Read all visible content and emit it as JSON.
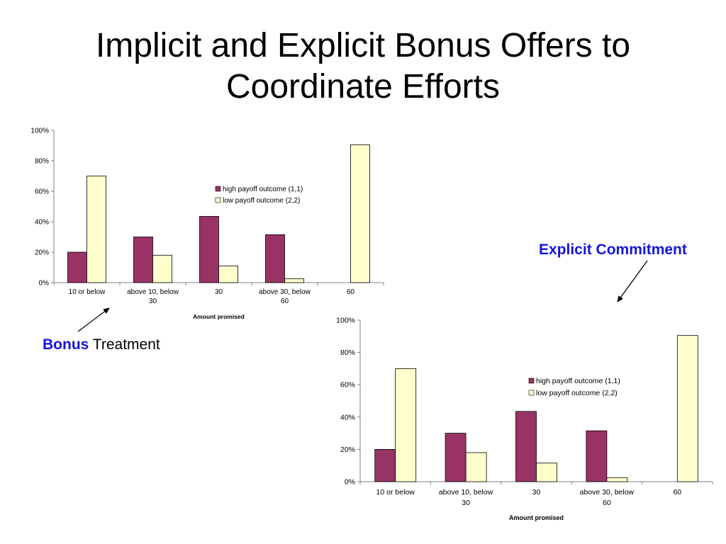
{
  "slide": {
    "title_line1": "Implicit and Explicit Bonus Offers to",
    "title_line2": "Coordinate Efforts"
  },
  "annotations": {
    "bonus_bold": "Bonus",
    "bonus_rest": "Treatment",
    "explicit": "Explicit Commitment"
  },
  "colors": {
    "high": "#993366",
    "low": "#ffffcc",
    "annotation": "#1515d8"
  },
  "chart_data": [
    {
      "type": "bar",
      "categories": [
        [
          "10 or below"
        ],
        [
          "above 10, below",
          "30"
        ],
        [
          "30"
        ],
        [
          "above 30, below",
          "60"
        ],
        [
          "60"
        ]
      ],
      "series": [
        {
          "name": "high payoff outcome (1,1)",
          "values": [
            0.2,
            0.3,
            0.435,
            0.315,
            0
          ]
        },
        {
          "name": "low payoff outcome (2,2)",
          "values": [
            0.7,
            0.18,
            0.11,
            0.025,
            0.905
          ]
        }
      ],
      "yticks": [
        "0%",
        "20%",
        "40%",
        "60%",
        "80%",
        "100%"
      ],
      "ylim": [
        0,
        1
      ],
      "xlabel": "Amount promised",
      "ylabel": "",
      "legend": "upper-center",
      "grid": false
    },
    {
      "type": "bar",
      "categories": [
        [
          "10 or below"
        ],
        [
          "above 10, below",
          "30"
        ],
        [
          "30"
        ],
        [
          "above 30, below",
          "60"
        ],
        [
          "60"
        ]
      ],
      "series": [
        {
          "name": "high payoff outcome (1,1)",
          "values": [
            0.2,
            0.3,
            0.435,
            0.315,
            0
          ]
        },
        {
          "name": "low payoff outcome (2,2)",
          "values": [
            0.7,
            0.18,
            0.115,
            0.025,
            0.905
          ]
        }
      ],
      "yticks": [
        "0%",
        "20%",
        "40%",
        "60%",
        "80%",
        "100%"
      ],
      "ylim": [
        0,
        1
      ],
      "xlabel": "Amount promised",
      "ylabel": "",
      "legend": "upper-center",
      "grid": false
    }
  ]
}
